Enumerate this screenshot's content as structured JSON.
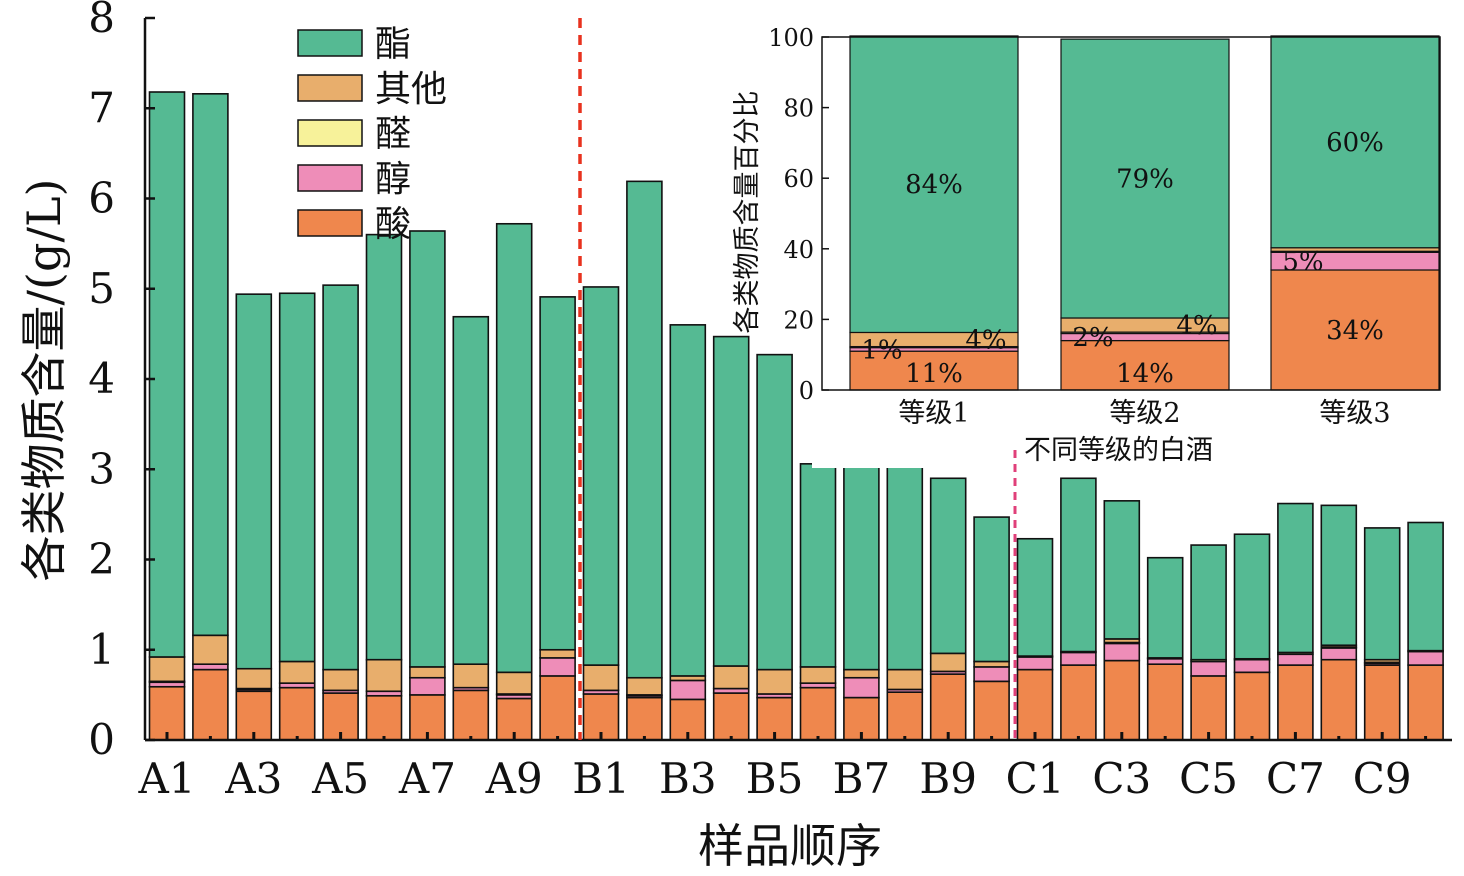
{
  "chart_data": [
    {
      "type": "bar",
      "stacked": true,
      "xlabel": "样品顺序",
      "ylabel": "各类物质含量/(g/L)",
      "ylim": [
        0,
        8
      ],
      "yticks": [
        "0",
        "1",
        "2",
        "3",
        "4",
        "5",
        "6",
        "7",
        "8"
      ],
      "categories": [
        "A1",
        "A2",
        "A3",
        "A4",
        "A5",
        "A6",
        "A7",
        "A8",
        "A9",
        "A10",
        "B1",
        "B2",
        "B3",
        "B4",
        "B5",
        "B6",
        "B7",
        "B8",
        "B9",
        "B10",
        "C1",
        "C2",
        "C3",
        "C4",
        "C5",
        "C6",
        "C7",
        "C8",
        "C9",
        "C10"
      ],
      "xtick_labels": [
        "A1",
        "A3",
        "A5",
        "A7",
        "A9",
        "B1",
        "B3",
        "B5",
        "B7",
        "B9",
        "C1",
        "C3",
        "C5",
        "C7",
        "C9"
      ],
      "legend_position": "top-left",
      "series": [
        {
          "name": "酸",
          "color": "#EF874D",
          "values": [
            0.59,
            0.78,
            0.54,
            0.58,
            0.52,
            0.49,
            0.5,
            0.55,
            0.46,
            0.71,
            0.51,
            0.47,
            0.45,
            0.52,
            0.47,
            0.58,
            0.47,
            0.53,
            0.73,
            0.65,
            0.78,
            0.83,
            0.88,
            0.84,
            0.71,
            0.75,
            0.83,
            0.89,
            0.83,
            0.83
          ]
        },
        {
          "name": "醇",
          "color": "#EE8DB8",
          "values": [
            0.05,
            0.06,
            0.02,
            0.05,
            0.03,
            0.05,
            0.19,
            0.03,
            0.04,
            0.2,
            0.04,
            0.02,
            0.21,
            0.05,
            0.04,
            0.05,
            0.22,
            0.03,
            0.03,
            0.16,
            0.14,
            0.14,
            0.19,
            0.06,
            0.16,
            0.14,
            0.12,
            0.13,
            0.02,
            0.15
          ]
        },
        {
          "name": "醛",
          "color": "#F7F29A",
          "values": [
            0.01,
            0.0,
            0.01,
            0.0,
            0.0,
            0.0,
            0.0,
            0.0,
            0.01,
            0.0,
            0.0,
            0.01,
            0.0,
            0.0,
            0.0,
            0.0,
            0.0,
            0.0,
            0.0,
            0.0,
            0.01,
            0.01,
            0.01,
            0.01,
            0.02,
            0.01,
            0.02,
            0.01,
            0.01,
            0.01
          ]
        },
        {
          "name": "其他",
          "color": "#E8AE6C",
          "values": [
            0.27,
            0.32,
            0.22,
            0.24,
            0.23,
            0.35,
            0.12,
            0.26,
            0.24,
            0.09,
            0.28,
            0.19,
            0.05,
            0.25,
            0.27,
            0.18,
            0.09,
            0.22,
            0.2,
            0.06,
            0.0,
            0.0,
            0.04,
            0.0,
            0.0,
            0.0,
            0.0,
            0.02,
            0.03,
            0.0
          ]
        },
        {
          "name": "酯",
          "color": "#55BA93",
          "values": [
            6.26,
            6.0,
            4.15,
            4.08,
            4.26,
            4.71,
            4.83,
            3.85,
            4.97,
            3.91,
            4.19,
            5.5,
            3.89,
            3.65,
            3.49,
            2.25,
            2.78,
            2.56,
            1.94,
            1.6,
            1.3,
            1.92,
            1.53,
            1.11,
            1.27,
            1.38,
            1.65,
            1.55,
            1.46,
            1.42
          ]
        }
      ],
      "annotations": [
        {
          "text": "不同等级的白酒",
          "line_color": "#E0407A"
        }
      ],
      "divider_color": "#E8321E"
    },
    {
      "type": "bar",
      "stacked": true,
      "ylabel": "各类物质含量百分比",
      "ylim": [
        0,
        100
      ],
      "yticks": [
        "0",
        "20",
        "40",
        "60",
        "80",
        "100"
      ],
      "categories": [
        "等级1",
        "等级2",
        "等级3"
      ],
      "series": [
        {
          "name": "酸",
          "values": [
            11,
            14,
            34
          ],
          "labels": [
            "11%",
            "14%",
            "34%"
          ]
        },
        {
          "name": "醇",
          "values": [
            1,
            2,
            5
          ],
          "labels": [
            "1%",
            "2%",
            "5%"
          ]
        },
        {
          "name": "醛",
          "values": [
            0.3,
            0.4,
            0.3
          ],
          "labels": [
            "",
            "",
            ""
          ]
        },
        {
          "name": "其他",
          "values": [
            4,
            4,
            1
          ],
          "labels": [
            "4%",
            "4%",
            ""
          ]
        },
        {
          "name": "酯",
          "values": [
            84,
            79,
            60
          ],
          "labels": [
            "84%",
            "79%",
            "60%"
          ]
        }
      ]
    }
  ]
}
